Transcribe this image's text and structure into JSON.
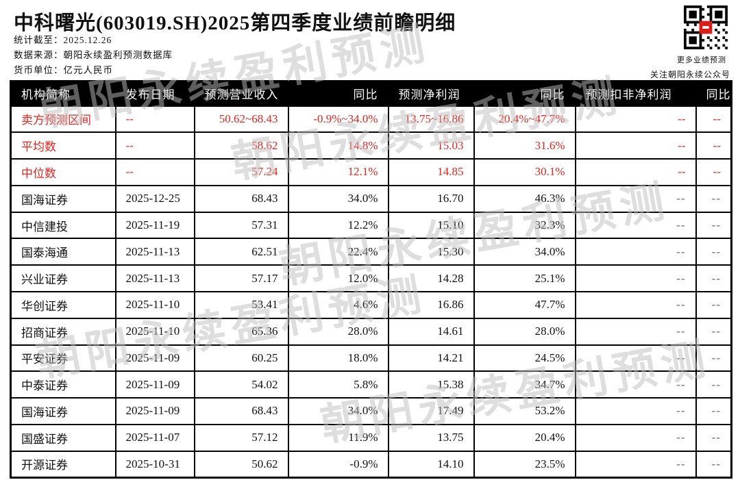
{
  "page": {
    "title": "中科曙光(603019.SH)2025第四季度业绩前瞻明细",
    "meta": [
      {
        "label": "统计截至：",
        "value": "2025.12.26"
      },
      {
        "label": "数据来源：",
        "value": "朝阳永续盈利预测数据库"
      },
      {
        "label": "货币单位：",
        "value": "亿元人民币"
      }
    ]
  },
  "qr": {
    "caption_line1": "更多业绩预测",
    "caption_line2": "关注朝阳永续公众号",
    "logo_color": "#d81e18"
  },
  "watermark": {
    "text": "朝阳永续盈利预测"
  },
  "colors": {
    "highlight_red": "#e8231d",
    "header_bg": "#000000",
    "border": "#000000"
  },
  "table": {
    "headers": [
      "机构简称",
      "发布日期",
      "预测营业收入",
      "同比",
      "预测净利润",
      "同比",
      "预测扣非净利润",
      "同比"
    ],
    "rows": [
      {
        "highlight": true,
        "cells": [
          "卖方预测区间",
          "--",
          "50.62~68.43",
          "-0.9%~34.0%",
          "13.75~16.86",
          "20.4%~47.7%",
          "--",
          "--"
        ]
      },
      {
        "highlight": true,
        "cells": [
          "平均数",
          "--",
          "58.62",
          "14.8%",
          "15.03",
          "31.6%",
          "--",
          "--"
        ]
      },
      {
        "highlight": true,
        "cells": [
          "中位数",
          "--",
          "57.24",
          "12.1%",
          "14.85",
          "30.1%",
          "--",
          "--"
        ]
      },
      {
        "highlight": false,
        "cells": [
          "国海证券",
          "2025-12-25",
          "68.43",
          "34.0%",
          "16.70",
          "46.3%",
          "--",
          "--"
        ]
      },
      {
        "highlight": false,
        "cells": [
          "中信建投",
          "2025-11-19",
          "57.31",
          "12.2%",
          "15.10",
          "32.3%",
          "--",
          "--"
        ]
      },
      {
        "highlight": false,
        "cells": [
          "国泰海通",
          "2025-11-13",
          "62.51",
          "22.4%",
          "15.30",
          "34.0%",
          "--",
          "--"
        ]
      },
      {
        "highlight": false,
        "cells": [
          "兴业证券",
          "2025-11-13",
          "57.17",
          "12.0%",
          "14.28",
          "25.1%",
          "--",
          "--"
        ]
      },
      {
        "highlight": false,
        "cells": [
          "华创证券",
          "2025-11-10",
          "53.41",
          "4.6%",
          "16.86",
          "47.7%",
          "--",
          "--"
        ]
      },
      {
        "highlight": false,
        "cells": [
          "招商证券",
          "2025-11-10",
          "65.36",
          "28.0%",
          "14.61",
          "28.0%",
          "--",
          "--"
        ]
      },
      {
        "highlight": false,
        "cells": [
          "平安证券",
          "2025-11-09",
          "60.25",
          "18.0%",
          "14.21",
          "24.5%",
          "--",
          "--"
        ]
      },
      {
        "highlight": false,
        "cells": [
          "中泰证券",
          "2025-11-09",
          "54.02",
          "5.8%",
          "15.38",
          "34.7%",
          "--",
          "--"
        ]
      },
      {
        "highlight": false,
        "cells": [
          "国海证券",
          "2025-11-09",
          "68.43",
          "34.0%",
          "17.49",
          "53.2%",
          "--",
          "--"
        ]
      },
      {
        "highlight": false,
        "cells": [
          "国盛证券",
          "2025-11-07",
          "57.12",
          "11.9%",
          "13.75",
          "20.4%",
          "--",
          "--"
        ]
      },
      {
        "highlight": false,
        "cells": [
          "开源证券",
          "2025-10-31",
          "50.62",
          "-0.9%",
          "14.10",
          "23.5%",
          "--",
          "--"
        ]
      }
    ]
  }
}
